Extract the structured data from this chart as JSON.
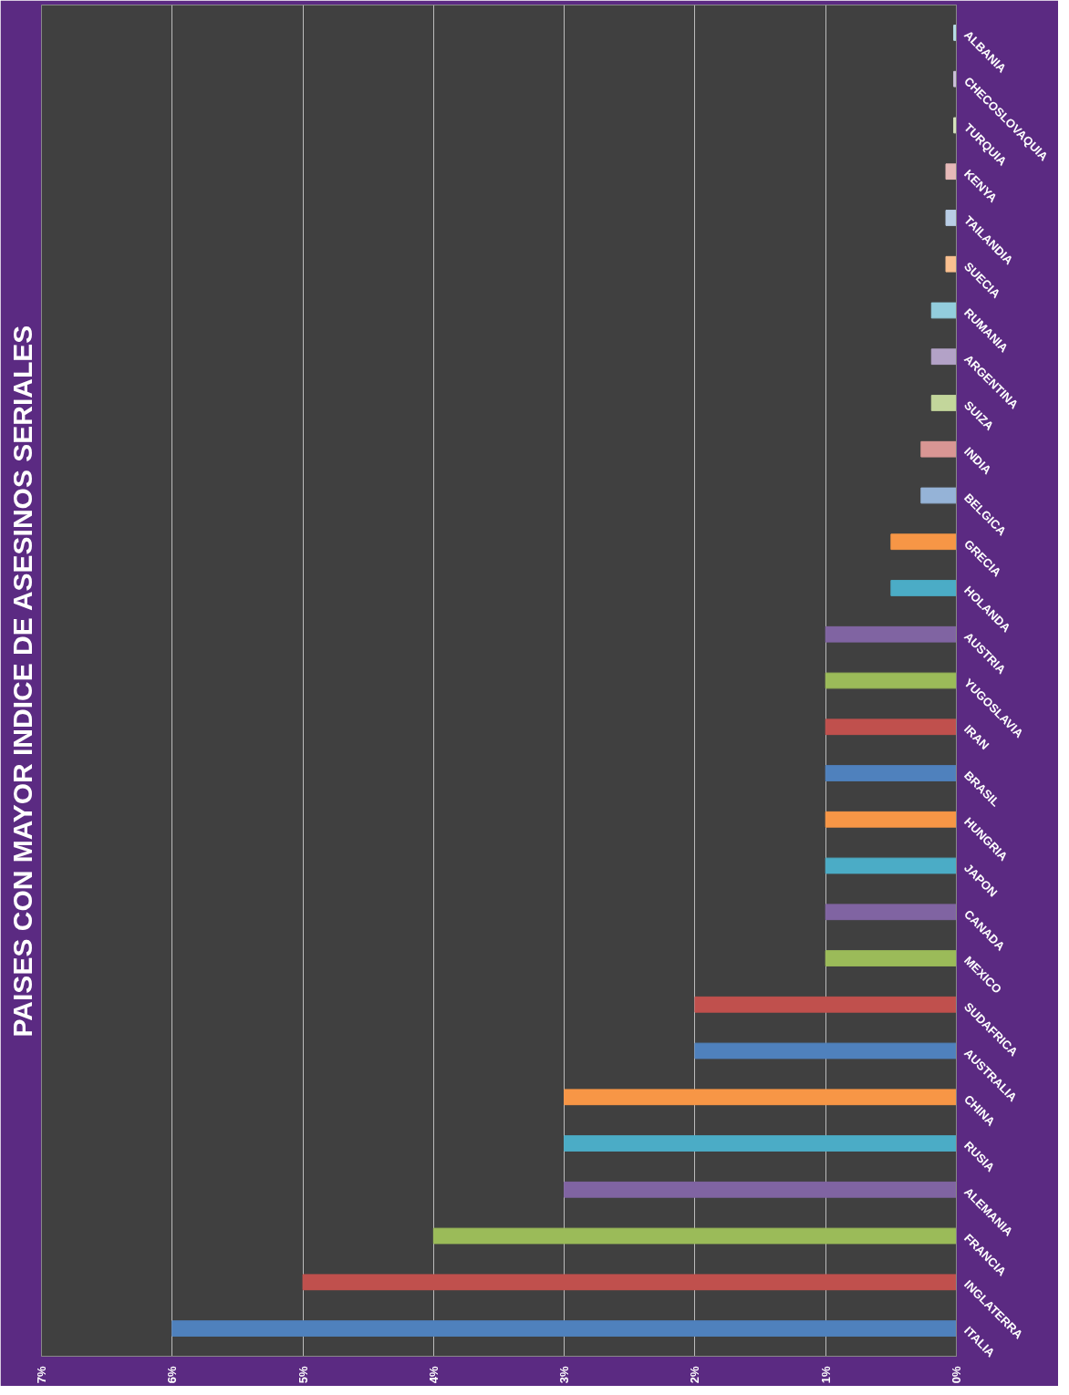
{
  "chart_data": {
    "type": "bar",
    "orientation": "horizontal",
    "title": "PAISES CON MAYOR INDICE DE ASESINOS SERIALES",
    "categories": [
      "ALBANIA",
      "CHECOSLOVAQUIA",
      "TURQUIA",
      "KENYA",
      "TAILANDIA",
      "SUECIA",
      "RUMANIA",
      "ARGENTINA",
      "SUIZA",
      "INDIA",
      "BELGICA",
      "GRECIA",
      "HOLANDA",
      "AUSTRIA",
      "YUGOSLAVIA",
      "IRAN",
      "BRASIL",
      "HUNGRIA",
      "JAPON",
      "CANADA",
      "MEXICO",
      "SUDAFRICA",
      "AUSTRALIA",
      "CHINA",
      "RUSIA",
      "ALEMANIA",
      "FRANCIA",
      "INGLATERRA",
      "ITALIA"
    ],
    "values": [
      0.02,
      0.02,
      0.02,
      0.08,
      0.08,
      0.08,
      0.19,
      0.19,
      0.19,
      0.27,
      0.27,
      0.5,
      0.5,
      1,
      1,
      1,
      1,
      1,
      1,
      1,
      1,
      2,
      2,
      3,
      3,
      3,
      4,
      5,
      6
    ],
    "colors": [
      "#b7dee8",
      "#ccc1da",
      "#d7e4bd",
      "#e6b9b8",
      "#b9cde5",
      "#fac090",
      "#93cddd",
      "#b3a2c7",
      "#c3d69b",
      "#d99694",
      "#95b3d7",
      "#f79646",
      "#4bacc6",
      "#8064a2",
      "#9bbb59",
      "#c0504d",
      "#4f81bd",
      "#f79646",
      "#4bacc6",
      "#8064a2",
      "#9bbb59",
      "#c0504d",
      "#4f81bd",
      "#f79646",
      "#4bacc6",
      "#8064a2",
      "#9bbb59",
      "#c0504d",
      "#4f81bd"
    ],
    "xlim": [
      7,
      0
    ],
    "xticks": [
      {
        "value": 7,
        "label": "7%"
      },
      {
        "value": 6,
        "label": "6%"
      },
      {
        "value": 5,
        "label": "5%"
      },
      {
        "value": 4,
        "label": "4%"
      },
      {
        "value": 3,
        "label": "3%"
      },
      {
        "value": 2,
        "label": "2%"
      },
      {
        "value": 1,
        "label": "1%"
      },
      {
        "value": 0,
        "label": "0%"
      }
    ],
    "grid": "x"
  }
}
